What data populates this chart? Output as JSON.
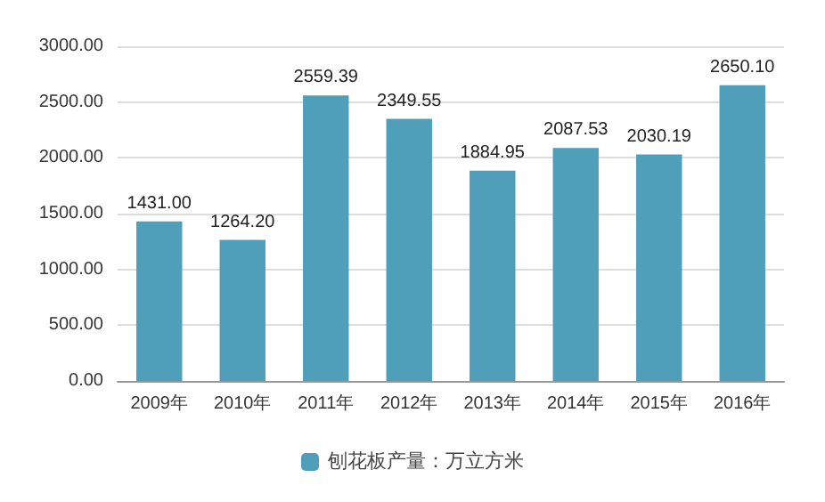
{
  "chart_data": {
    "type": "bar",
    "categories": [
      "2009年",
      "2010年",
      "2011年",
      "2012年",
      "2013年",
      "2014年",
      "2015年",
      "2016年"
    ],
    "series": [
      {
        "name": "刨花板产量：万立方米",
        "color": "#4f9fba",
        "values": [
          1431.0,
          1264.2,
          2559.39,
          2349.55,
          1884.95,
          2087.53,
          2030.19,
          2650.1
        ],
        "value_labels": [
          "1431.00",
          "1264.20",
          "2559.39",
          "2349.55",
          "1884.95",
          "2087.53",
          "2030.19",
          "2650.10"
        ]
      }
    ],
    "ylim": [
      0,
      3000
    ],
    "yticks": [
      {
        "value": 0,
        "label": "0.00"
      },
      {
        "value": 500,
        "label": "500.00"
      },
      {
        "value": 1000,
        "label": "1000.00"
      },
      {
        "value": 1500,
        "label": "1500.00"
      },
      {
        "value": 2000,
        "label": "2000.00"
      },
      {
        "value": 2500,
        "label": "2500.00"
      },
      {
        "value": 3000,
        "label": "3000.00"
      }
    ],
    "grid": "y",
    "legend": "bottom"
  }
}
